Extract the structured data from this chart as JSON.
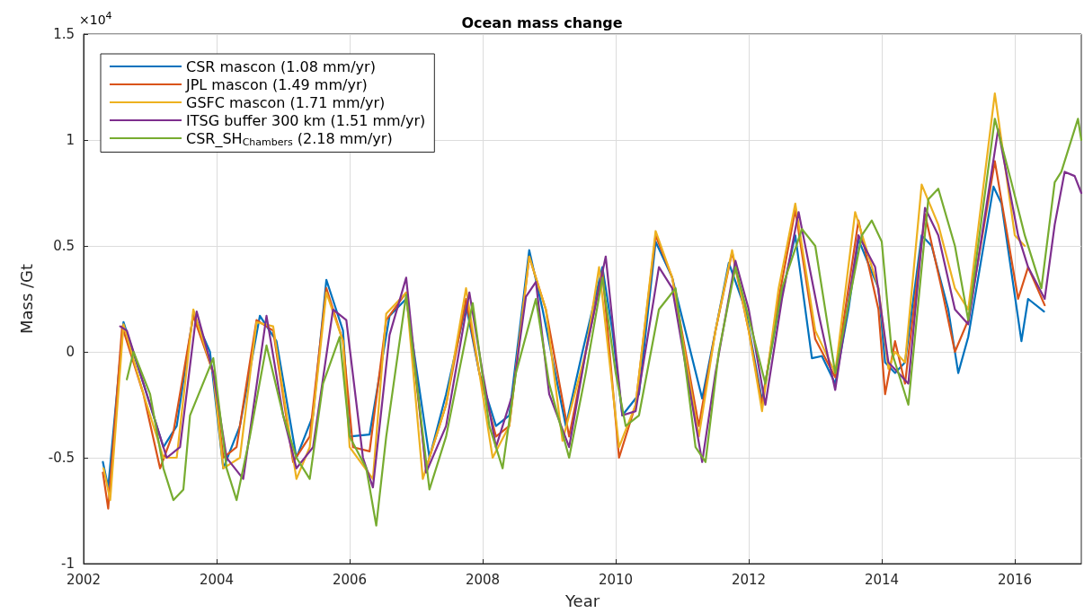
{
  "chart_data": {
    "type": "line",
    "title": "Ocean mass change",
    "xlabel": "Year",
    "ylabel": "Mass /Gt",
    "annotations": [
      "×10$^{4}$"
    ],
    "xlim": [
      2002,
      2017
    ],
    "xticks": [
      2002,
      2004,
      2006,
      2008,
      2010,
      2012,
      2014,
      2016
    ],
    "ylim": [
      -1,
      1.5
    ],
    "yticks": [
      -1,
      -0.5,
      0,
      0.5,
      1,
      1.5
    ],
    "grid": true,
    "legend": "top left",
    "marker": "none",
    "line_style": "solid",
    "series": [
      {
        "name": "CSR mascon (1.08 mm/yr)",
        "color": "#0072bd",
        "x": [
          2002.29,
          2002.37,
          2002.6,
          2002.9,
          2003.2,
          2003.4,
          2003.65,
          2003.9,
          2004.1,
          2004.35,
          2004.65,
          2004.9,
          2005.2,
          2005.45,
          2005.65,
          2005.9,
          2006.0,
          2006.3,
          2006.6,
          2006.85,
          2007.2,
          2007.45,
          2007.75,
          2007.95,
          2008.2,
          2008.4,
          2008.7,
          2008.9,
          2009.25,
          2009.5,
          2009.8,
          2009.95,
          2010.1,
          2010.35,
          2010.6,
          2010.85,
          2011.3,
          2011.5,
          2011.7,
          2011.95,
          2012.2,
          2012.45,
          2012.7,
          2012.95,
          2013.1,
          2013.3,
          2013.5,
          2013.65,
          2013.95,
          2014.05,
          2014.2,
          2014.35,
          2014.6,
          2014.75,
          2015.0,
          2015.15,
          2015.3,
          2015.68,
          2015.8,
          2016.1,
          2016.2,
          2016.44
        ],
        "values": [
          -0.52,
          -0.64,
          0.14,
          -0.15,
          -0.45,
          -0.35,
          0.18,
          0.0,
          -0.55,
          -0.35,
          0.17,
          0.05,
          -0.5,
          -0.3,
          0.34,
          0.1,
          -0.4,
          -0.39,
          0.17,
          0.25,
          -0.5,
          -0.2,
          0.22,
          -0.1,
          -0.35,
          -0.3,
          0.48,
          0.2,
          -0.35,
          0.0,
          0.4,
          0.1,
          -0.3,
          -0.2,
          0.52,
          0.35,
          -0.22,
          0.1,
          0.42,
          0.2,
          -0.23,
          0.2,
          0.55,
          -0.03,
          -0.02,
          -0.15,
          0.2,
          0.53,
          0.3,
          -0.05,
          -0.1,
          -0.05,
          0.55,
          0.5,
          0.2,
          -0.1,
          0.07,
          0.78,
          0.7,
          0.05,
          0.25,
          0.19
        ]
      },
      {
        "name": "JPL mascon (1.49 mm/yr)",
        "color": "#d95319",
        "x": [
          2002.29,
          2002.37,
          2002.58,
          2002.9,
          2003.15,
          2003.35,
          2003.65,
          2003.95,
          2004.1,
          2004.3,
          2004.6,
          2004.85,
          2005.15,
          2005.4,
          2005.65,
          2005.9,
          2006.05,
          2006.3,
          2006.55,
          2006.85,
          2007.15,
          2007.45,
          2007.75,
          2007.95,
          2008.2,
          2008.4,
          2008.7,
          2008.95,
          2009.3,
          2009.55,
          2009.8,
          2010.05,
          2010.3,
          2010.6,
          2010.85,
          2011.25,
          2011.5,
          2011.75,
          2012.0,
          2012.2,
          2012.45,
          2012.7,
          2013.0,
          2013.3,
          2013.65,
          2013.95,
          2014.05,
          2014.2,
          2014.35,
          2014.65,
          2014.9,
          2015.1,
          2015.3,
          2015.7,
          2016.05,
          2016.2,
          2016.45
        ],
        "values": [
          -0.57,
          -0.74,
          0.12,
          -0.2,
          -0.55,
          -0.38,
          0.17,
          -0.1,
          -0.5,
          -0.45,
          0.15,
          0.1,
          -0.52,
          -0.4,
          0.3,
          0.05,
          -0.45,
          -0.47,
          0.15,
          0.28,
          -0.55,
          -0.25,
          0.25,
          -0.1,
          -0.4,
          -0.35,
          0.45,
          0.2,
          -0.4,
          0.0,
          0.38,
          -0.5,
          -0.25,
          0.55,
          0.35,
          -0.35,
          0.1,
          0.47,
          0.1,
          -0.25,
          0.25,
          0.67,
          0.06,
          -0.12,
          0.62,
          0.2,
          -0.2,
          0.05,
          -0.15,
          0.65,
          0.3,
          0.0,
          0.15,
          0.9,
          0.25,
          0.4,
          0.22
        ]
      },
      {
        "name": "GSFC mascon (1.71 mm/yr)",
        "color": "#edb120",
        "x": [
          2002.3,
          2002.4,
          2002.6,
          2002.9,
          2003.2,
          2003.4,
          2003.65,
          2003.95,
          2004.1,
          2004.35,
          2004.6,
          2004.85,
          2005.2,
          2005.4,
          2005.65,
          2005.9,
          2006.0,
          2006.35,
          2006.55,
          2006.85,
          2007.1,
          2007.45,
          2007.75,
          2007.95,
          2008.15,
          2008.4,
          2008.7,
          2008.95,
          2009.2,
          2009.55,
          2009.75,
          2010.05,
          2010.3,
          2010.6,
          2010.85,
          2011.25,
          2011.5,
          2011.75,
          2012.0,
          2012.2,
          2012.45,
          2012.7,
          2013.0,
          2013.3,
          2013.6,
          2013.95,
          2014.1,
          2014.2,
          2014.35,
          2014.6,
          2014.85,
          2015.1,
          2015.3,
          2015.7,
          2016.0,
          2016.15
        ],
        "values": [
          -0.55,
          -0.7,
          0.13,
          -0.2,
          -0.5,
          -0.5,
          0.2,
          -0.1,
          -0.55,
          -0.5,
          0.14,
          0.12,
          -0.6,
          -0.45,
          0.28,
          0.05,
          -0.45,
          -0.6,
          0.18,
          0.28,
          -0.6,
          -0.25,
          0.3,
          -0.1,
          -0.5,
          -0.35,
          0.45,
          0.2,
          -0.42,
          0.0,
          0.4,
          -0.45,
          -0.25,
          0.57,
          0.35,
          -0.4,
          0.1,
          0.48,
          0.1,
          -0.28,
          0.3,
          0.7,
          0.1,
          -0.1,
          0.66,
          0.3,
          -0.08,
          0.0,
          -0.05,
          0.79,
          0.6,
          0.3,
          0.2,
          1.22,
          0.55,
          0.5
        ]
      },
      {
        "name": "ITSG buffer 300 km (1.51 mm/yr)",
        "color": "#7e2f8e",
        "x": [
          2002.55,
          2002.65,
          2002.9,
          2003.25,
          2003.45,
          2003.7,
          2003.95,
          2004.15,
          2004.4,
          2004.75,
          2005.0,
          2005.2,
          2005.45,
          2005.75,
          2005.95,
          2006.2,
          2006.35,
          2006.6,
          2006.85,
          2007.15,
          2007.45,
          2007.8,
          2008.0,
          2008.2,
          2008.45,
          2008.65,
          2008.8,
          2009.0,
          2009.3,
          2009.55,
          2009.85,
          2010.1,
          2010.3,
          2010.65,
          2010.85,
          2011.3,
          2011.5,
          2011.8,
          2012.0,
          2012.25,
          2012.5,
          2012.75,
          2013.05,
          2013.3,
          2013.65,
          2013.9,
          2014.1,
          2014.25,
          2014.4,
          2014.65,
          2014.85,
          2015.1,
          2015.3,
          2015.75,
          2016.05,
          2016.2,
          2016.45,
          2016.6,
          2016.75,
          2016.9,
          2017.0
        ],
        "values": [
          0.12,
          0.1,
          -0.15,
          -0.5,
          -0.45,
          0.19,
          -0.1,
          -0.5,
          -0.6,
          0.17,
          -0.3,
          -0.55,
          -0.45,
          0.2,
          0.15,
          -0.5,
          -0.64,
          0.08,
          0.35,
          -0.57,
          -0.35,
          0.28,
          -0.1,
          -0.45,
          -0.2,
          0.26,
          0.33,
          -0.2,
          -0.45,
          0.0,
          0.45,
          -0.3,
          -0.28,
          0.4,
          0.3,
          -0.52,
          -0.1,
          0.43,
          0.2,
          -0.25,
          0.25,
          0.66,
          0.18,
          -0.18,
          0.55,
          0.4,
          -0.05,
          -0.1,
          -0.15,
          0.68,
          0.55,
          0.2,
          0.13,
          1.05,
          0.55,
          0.4,
          0.25,
          0.6,
          0.85,
          0.83,
          0.75
        ]
      },
      {
        "name": "CSR_SH$_{Chambers}$ (2.18 mm/yr)",
        "color": "#77ac30",
        "x": [
          2002.65,
          2002.75,
          2003.0,
          2003.2,
          2003.35,
          2003.5,
          2003.6,
          2003.95,
          2004.15,
          2004.3,
          2004.5,
          2004.75,
          2005.0,
          2005.2,
          2005.4,
          2005.6,
          2005.85,
          2006.0,
          2006.25,
          2006.4,
          2006.55,
          2006.85,
          2007.2,
          2007.45,
          2007.85,
          2008.1,
          2008.3,
          2008.5,
          2008.8,
          2009.0,
          2009.3,
          2009.55,
          2009.8,
          2010.0,
          2010.15,
          2010.35,
          2010.65,
          2010.9,
          2011.2,
          2011.35,
          2011.55,
          2011.8,
          2012.05,
          2012.25,
          2012.5,
          2012.8,
          2013.0,
          2013.3,
          2013.7,
          2013.85,
          2014.0,
          2014.15,
          2014.4,
          2014.7,
          2014.85,
          2015.1,
          2015.3,
          2015.7,
          2015.95,
          2016.15,
          2016.4,
          2016.6,
          2016.7,
          2016.95,
          2017.0
        ],
        "values": [
          -0.13,
          0.0,
          -0.2,
          -0.55,
          -0.7,
          -0.65,
          -0.3,
          -0.03,
          -0.55,
          -0.7,
          -0.4,
          0.03,
          -0.3,
          -0.5,
          -0.6,
          -0.15,
          0.07,
          -0.4,
          -0.55,
          -0.82,
          -0.4,
          0.27,
          -0.65,
          -0.4,
          0.23,
          -0.35,
          -0.55,
          -0.1,
          0.25,
          -0.15,
          -0.5,
          -0.1,
          0.35,
          -0.1,
          -0.35,
          -0.3,
          0.2,
          0.3,
          -0.45,
          -0.52,
          0.0,
          0.4,
          0.1,
          -0.15,
          0.3,
          0.58,
          0.5,
          -0.1,
          0.55,
          0.62,
          0.52,
          0.0,
          -0.25,
          0.72,
          0.77,
          0.5,
          0.15,
          1.1,
          0.8,
          0.55,
          0.3,
          0.8,
          0.85,
          1.1,
          1.0
        ]
      }
    ]
  }
}
